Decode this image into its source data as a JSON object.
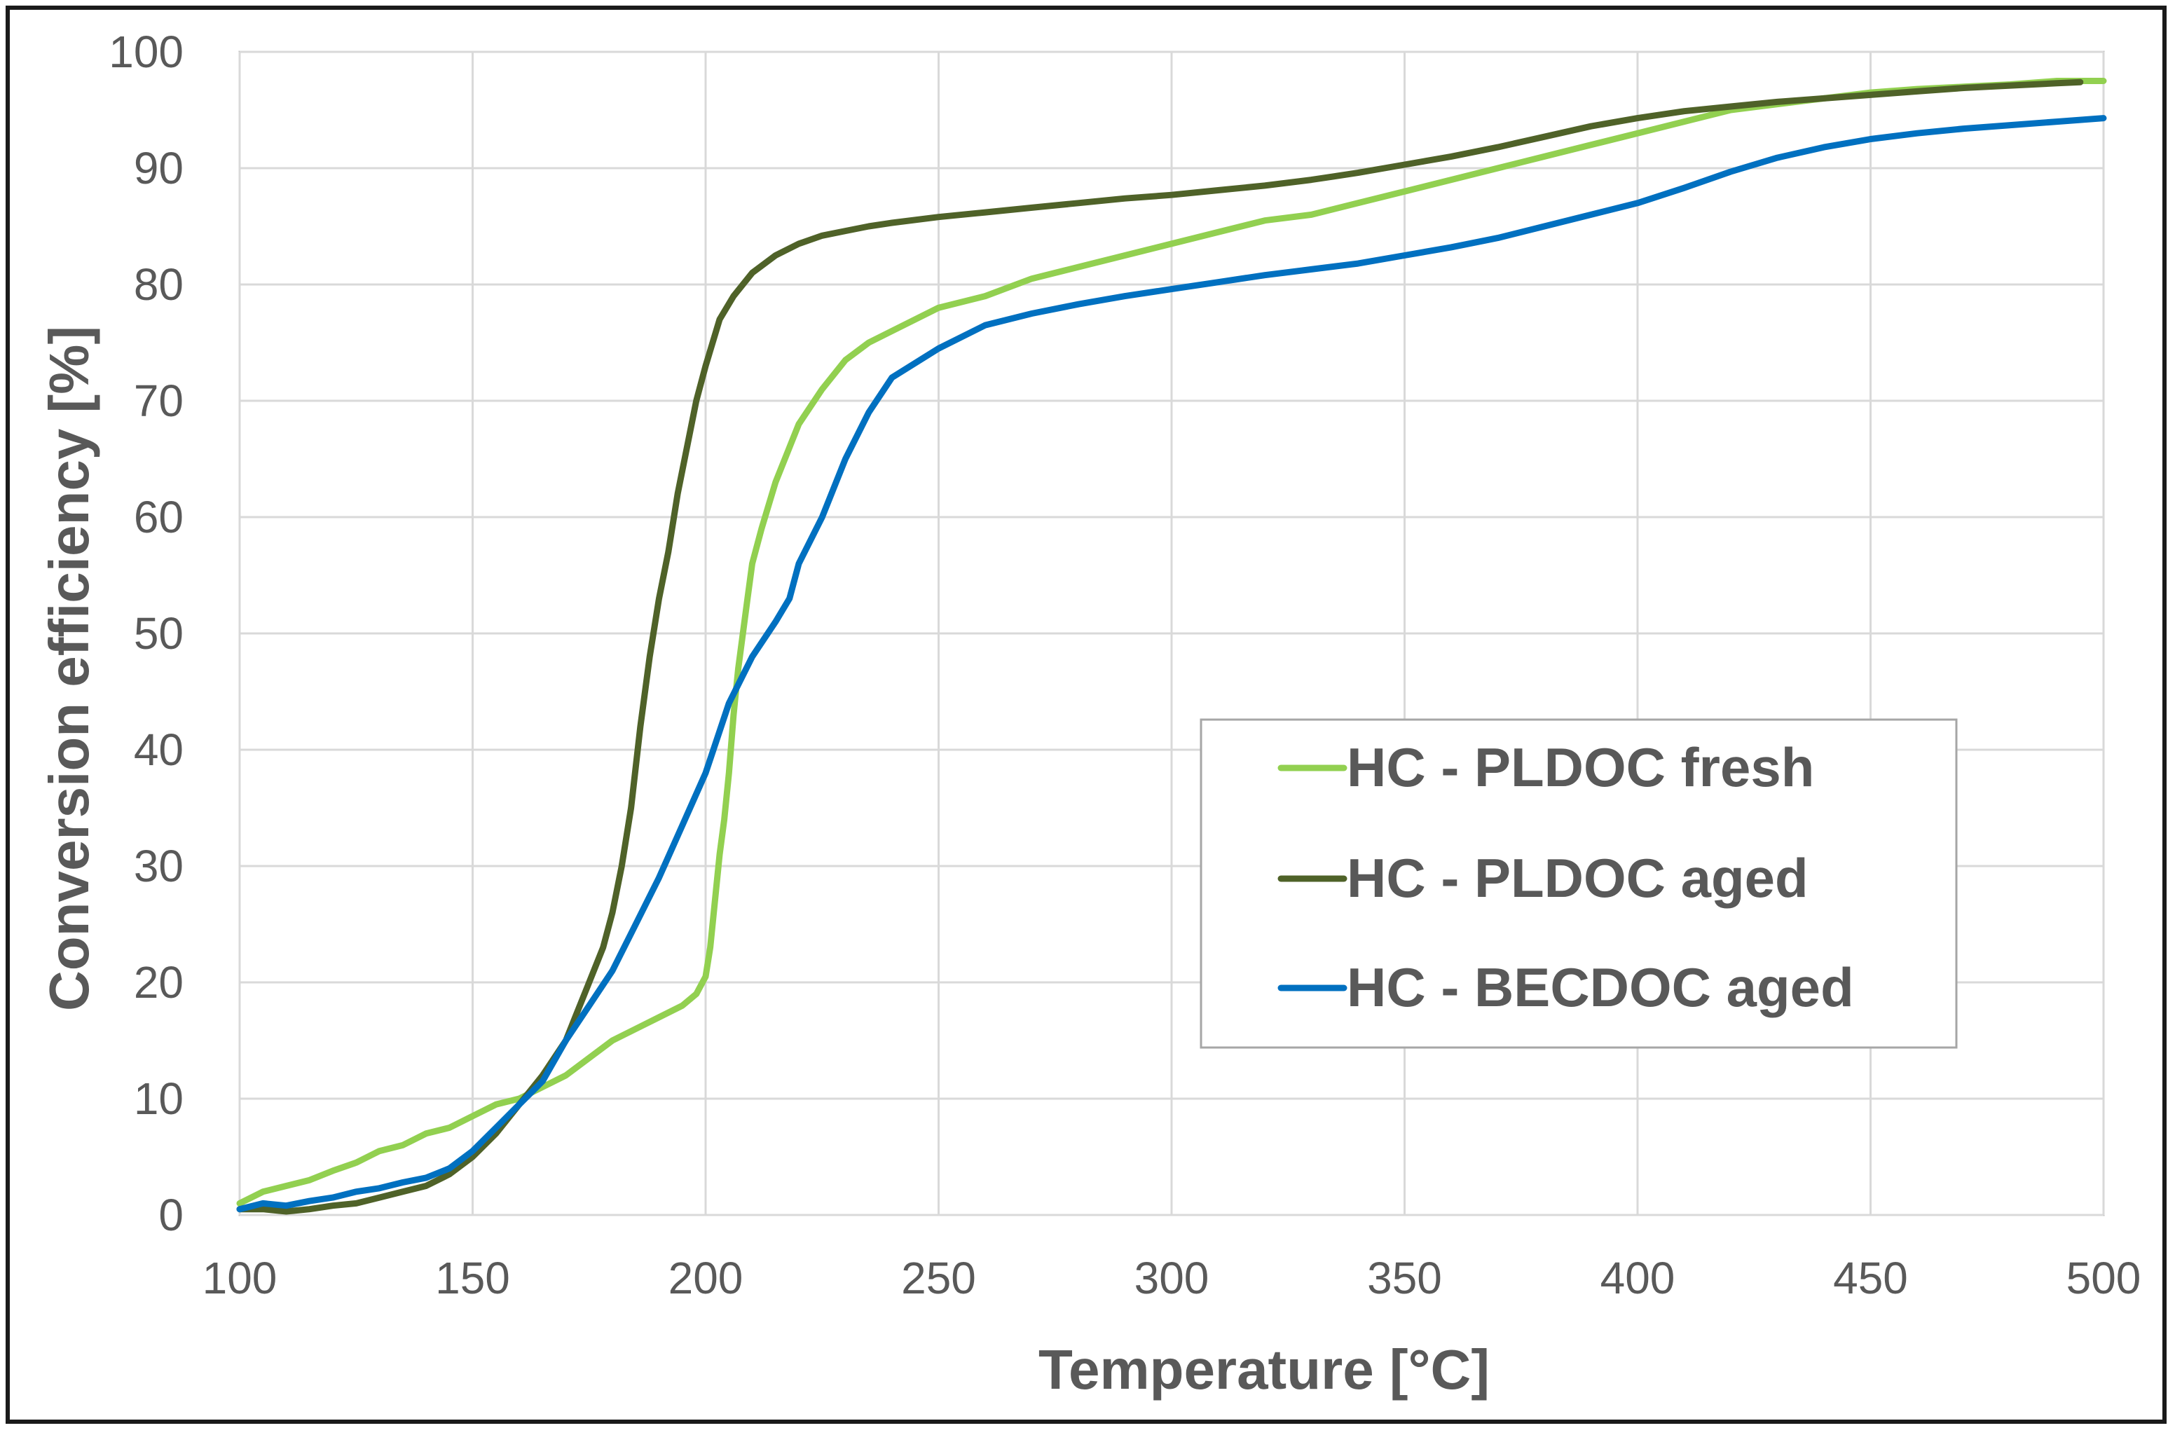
{
  "chart_data": {
    "type": "line",
    "title": "",
    "xlabel": "Temperature [°C]",
    "ylabel": "Conversion efficiency [%]",
    "xlim": [
      100,
      500
    ],
    "ylim": [
      0,
      100
    ],
    "xticks": [
      100,
      150,
      200,
      250,
      300,
      350,
      400,
      450,
      500
    ],
    "yticks": [
      0,
      10,
      20,
      30,
      40,
      50,
      60,
      70,
      80,
      90,
      100
    ],
    "grid": true,
    "legend_position": "center-right",
    "series": [
      {
        "name": "HC - PLDOC fresh",
        "color": "#92d050",
        "x": [
          100,
          105,
          110,
          115,
          120,
          125,
          130,
          135,
          140,
          145,
          150,
          155,
          160,
          165,
          170,
          175,
          180,
          185,
          190,
          195,
          198,
          200,
          201,
          202,
          203,
          204,
          205,
          206,
          207,
          208,
          209,
          210,
          212,
          215,
          218,
          220,
          225,
          230,
          235,
          240,
          250,
          260,
          270,
          280,
          290,
          300,
          310,
          320,
          330,
          340,
          350,
          360,
          370,
          380,
          390,
          400,
          410,
          420,
          430,
          440,
          450,
          460,
          470,
          480,
          490,
          500
        ],
        "y": [
          1,
          2,
          2.5,
          3,
          3.8,
          4.5,
          5.5,
          6,
          7,
          7.5,
          8.5,
          9.5,
          10,
          11,
          12,
          13.5,
          15,
          16,
          17,
          18,
          19,
          20.5,
          23,
          27,
          31,
          34,
          38,
          43,
          47,
          50,
          53,
          56,
          59,
          63,
          66,
          68,
          71,
          73.5,
          75,
          76,
          78,
          79,
          80.5,
          81.5,
          82.5,
          83.5,
          84.5,
          85.5,
          86,
          87,
          88,
          89,
          90,
          91,
          92,
          93,
          94,
          95,
          95.5,
          96,
          96.5,
          96.8,
          97,
          97.2,
          97.5,
          97.5
        ]
      },
      {
        "name": "HC - PLDOC aged",
        "color": "#4f6228",
        "x": [
          100,
          105,
          110,
          115,
          120,
          125,
          130,
          135,
          140,
          145,
          150,
          155,
          160,
          165,
          170,
          172,
          175,
          178,
          180,
          182,
          184,
          186,
          188,
          190,
          192,
          194,
          196,
          198,
          200,
          203,
          206,
          210,
          215,
          220,
          225,
          230,
          235,
          240,
          250,
          260,
          270,
          280,
          290,
          300,
          310,
          320,
          330,
          340,
          350,
          360,
          370,
          380,
          390,
          400,
          410,
          420,
          430,
          440,
          450,
          460,
          470,
          480,
          490,
          495
        ],
        "y": [
          0.5,
          0.5,
          0.3,
          0.5,
          0.8,
          1,
          1.5,
          2,
          2.5,
          3.5,
          5,
          7,
          9.5,
          12,
          15,
          17,
          20,
          23,
          26,
          30,
          35,
          42,
          48,
          53,
          57,
          62,
          66,
          70,
          73,
          77,
          79,
          81,
          82.5,
          83.5,
          84.2,
          84.6,
          85,
          85.3,
          85.8,
          86.2,
          86.6,
          87,
          87.4,
          87.7,
          88.1,
          88.5,
          89,
          89.6,
          90.3,
          91,
          91.8,
          92.7,
          93.6,
          94.3,
          94.9,
          95.3,
          95.7,
          96,
          96.3,
          96.6,
          96.9,
          97.1,
          97.3,
          97.4
        ]
      },
      {
        "name": "HC - BECDOC aged",
        "color": "#0070c0",
        "x": [
          100,
          105,
          110,
          115,
          120,
          125,
          130,
          135,
          140,
          145,
          150,
          155,
          160,
          165,
          170,
          175,
          180,
          185,
          190,
          195,
          200,
          205,
          210,
          215,
          218,
          220,
          225,
          230,
          235,
          240,
          250,
          260,
          270,
          280,
          290,
          300,
          310,
          320,
          330,
          340,
          350,
          360,
          370,
          380,
          390,
          400,
          410,
          420,
          430,
          440,
          450,
          460,
          470,
          480,
          490,
          500
        ],
        "y": [
          0.5,
          1,
          0.8,
          1.2,
          1.5,
          2,
          2.3,
          2.8,
          3.2,
          4,
          5.5,
          7.5,
          9.5,
          11.5,
          15,
          18,
          21,
          25,
          29,
          33.5,
          38,
          44,
          48,
          51,
          53,
          56,
          60,
          65,
          69,
          72,
          74.5,
          76.5,
          77.5,
          78.3,
          79,
          79.6,
          80.2,
          80.8,
          81.3,
          81.8,
          82.5,
          83.2,
          84,
          85,
          86,
          87,
          88.3,
          89.7,
          90.9,
          91.8,
          92.5,
          93,
          93.4,
          93.7,
          94,
          94.3
        ]
      }
    ]
  }
}
